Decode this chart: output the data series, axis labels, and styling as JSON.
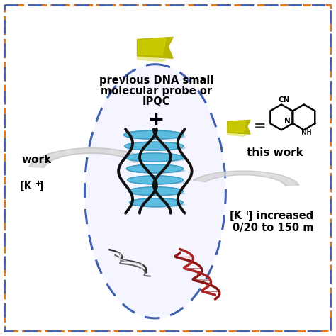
{
  "bg_color": "#ffffff",
  "outer_border_color": "#e07820",
  "inner_border_color": "#4060b0",
  "oval_border_color": "#4060b0",
  "text_center_line1": "previous DNA small",
  "text_center_line2": "molecular probe or",
  "text_center_line3": "IPQC",
  "text_plus": "+",
  "text_work_left": "work",
  "text_this_work": "this work",
  "text_k_right_line2": "0/20 to 150 m",
  "gquad_blue_color": "#5bbde0",
  "gquad_blue_dark": "#3898c0",
  "gquad_black_color": "#111111",
  "dna_dark_red": "#8b1515",
  "dna_black": "#222222",
  "ribbon_yellow": "#b8b800",
  "ribbon_yellow2": "#d4d000",
  "figsize": [
    4.74,
    4.74
  ],
  "dpi": 100
}
